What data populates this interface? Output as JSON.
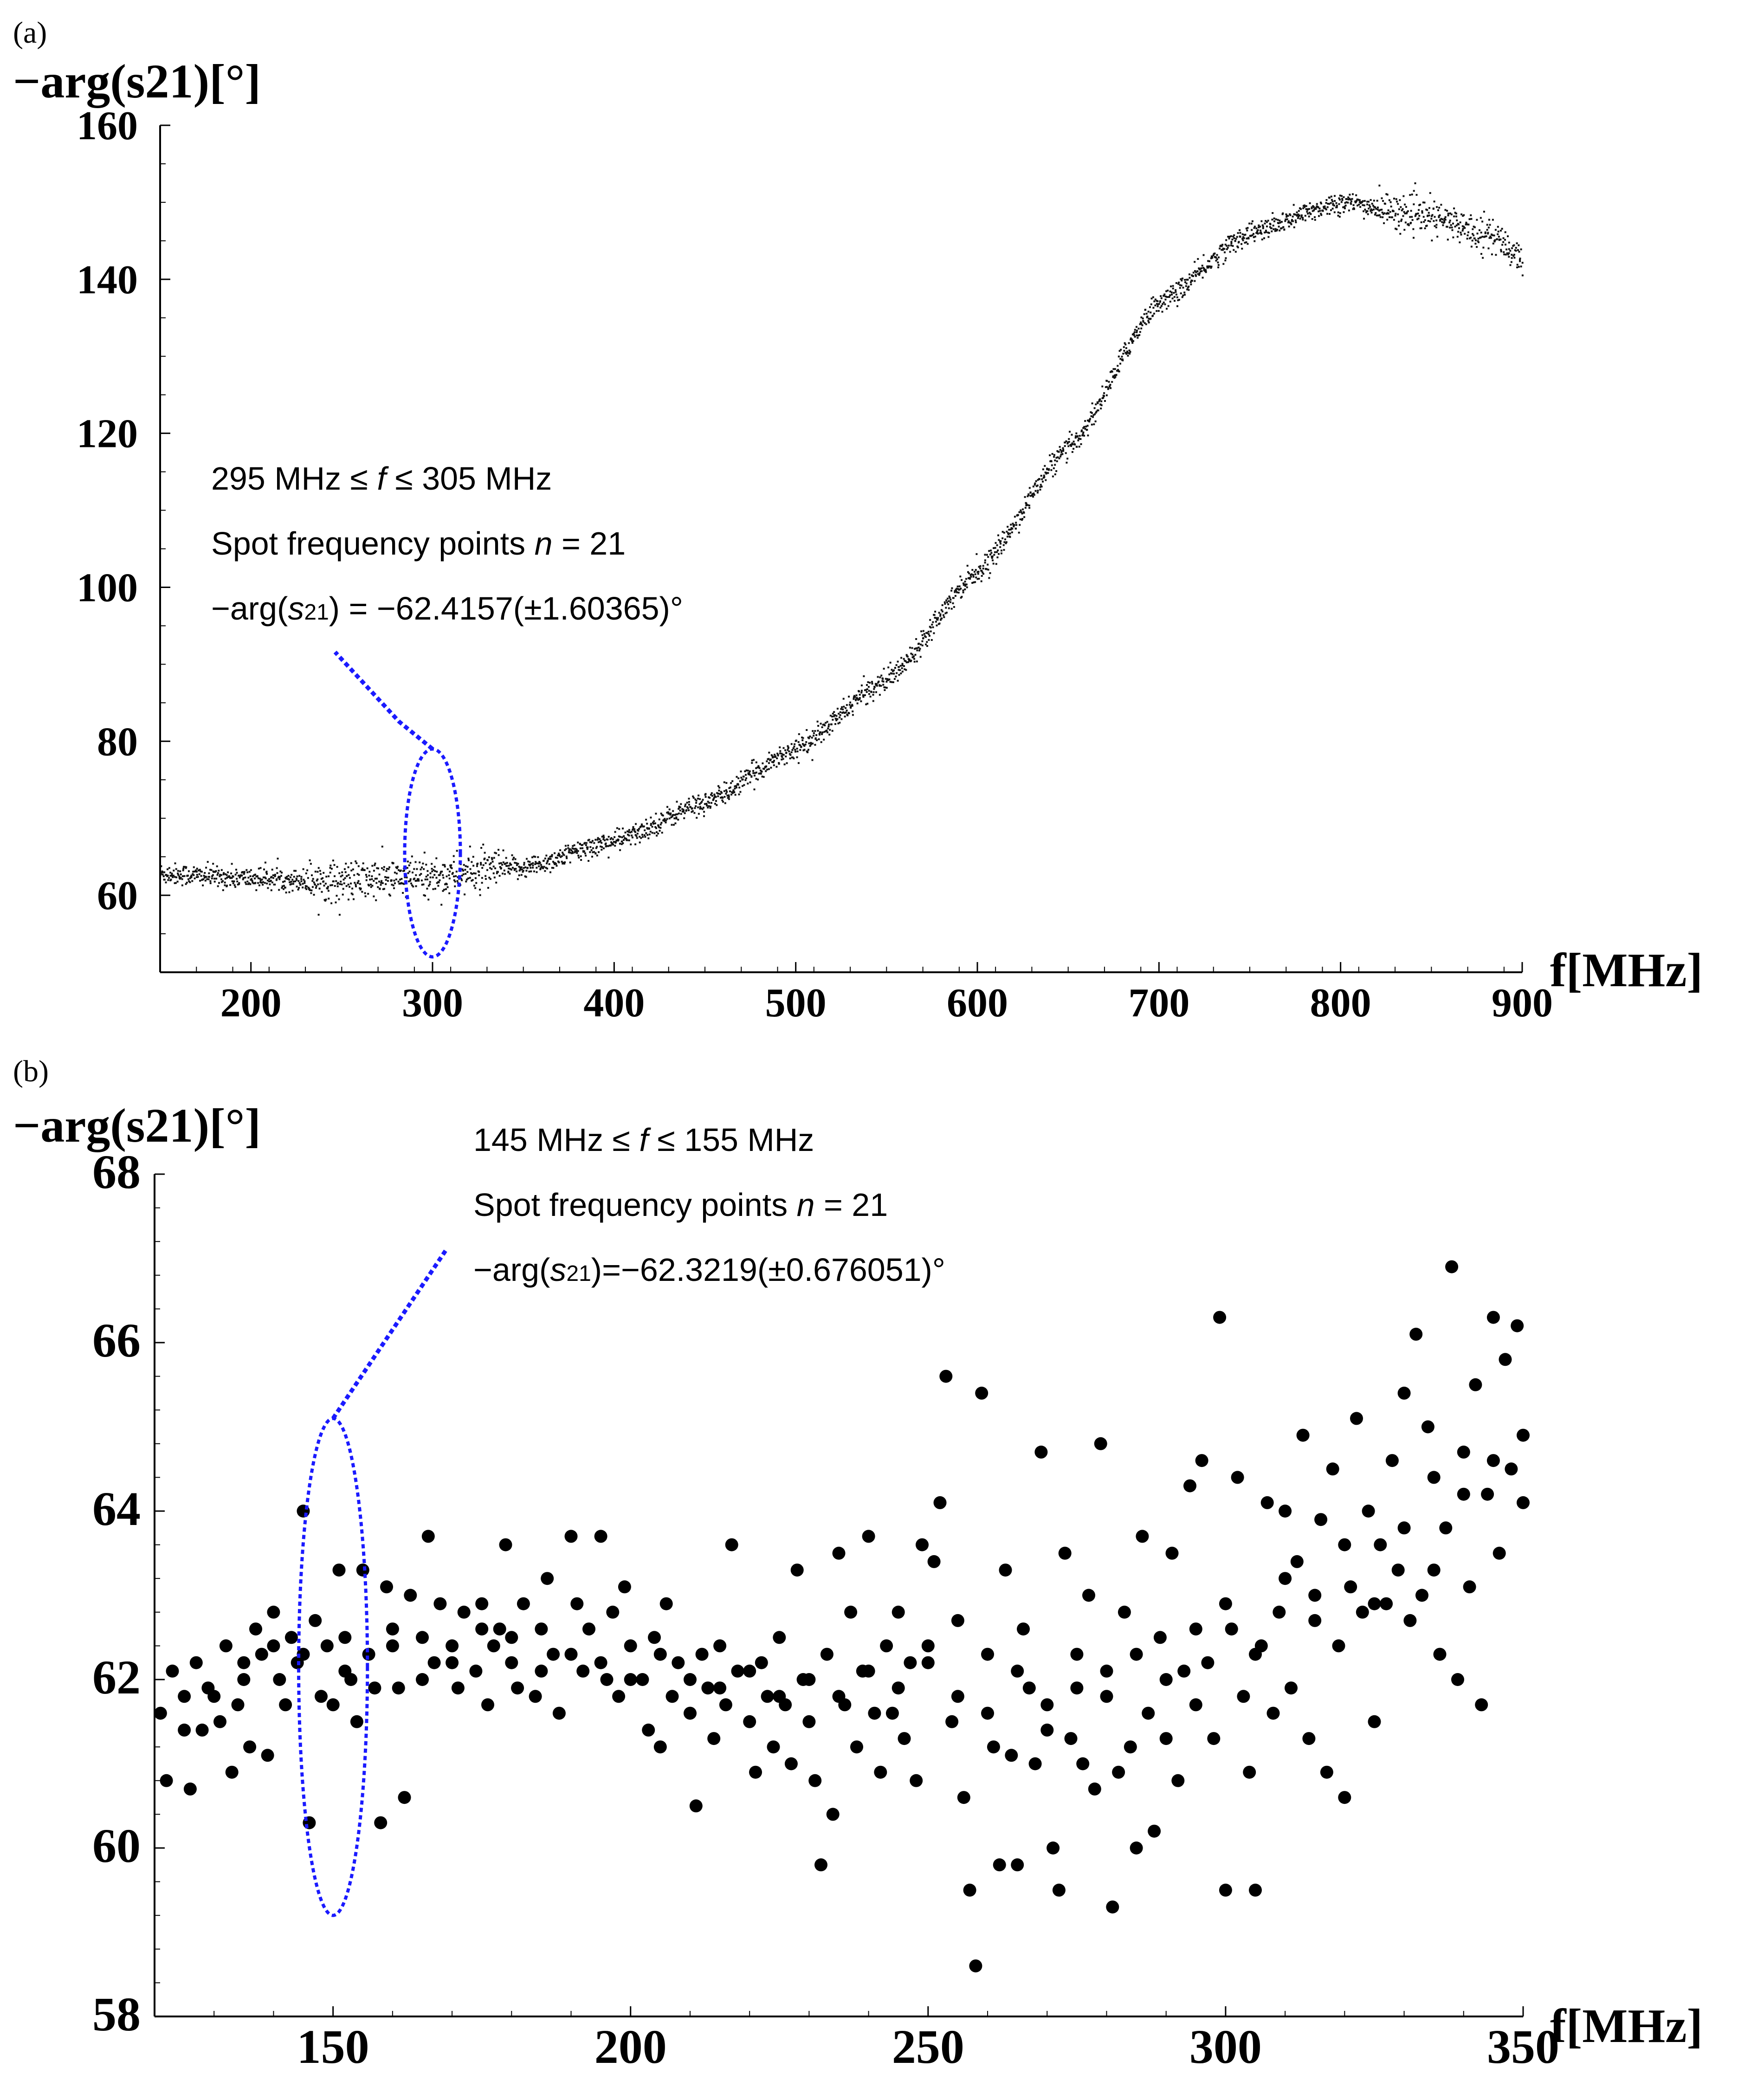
{
  "chart_data": [
    {
      "panel": "(a)",
      "type": "scatter",
      "ylabel": "−arg(s21)[°]",
      "xlabel": "f[MHz]",
      "xlim": [
        150,
        900
      ],
      "ylim": [
        50,
        160
      ],
      "xticks": [
        200,
        300,
        400,
        500,
        600,
        700,
        800,
        900
      ],
      "yticks": [
        60,
        80,
        100,
        120,
        140,
        160
      ],
      "curve_points": [
        [
          150,
          62.8
        ],
        [
          200,
          62.2
        ],
        [
          250,
          61.8
        ],
        [
          300,
          62.4
        ],
        [
          350,
          63.6
        ],
        [
          400,
          67
        ],
        [
          450,
          72
        ],
        [
          500,
          79
        ],
        [
          550,
          88
        ],
        [
          600,
          102
        ],
        [
          650,
          118
        ],
        [
          700,
          137
        ],
        [
          750,
          146
        ],
        [
          800,
          150
        ],
        [
          850,
          148
        ],
        [
          880,
          146
        ],
        [
          900,
          143
        ]
      ],
      "highlight": {
        "f_min": 295,
        "f_max": 305,
        "y_min": 52,
        "y_max": 79
      },
      "annotation": {
        "range": [
          "295 MHz ≤ ",
          "f",
          " ≤ 305 MHz"
        ],
        "count": [
          "Spot frequency points ",
          "n",
          " = 21"
        ],
        "result": [
          "−arg(",
          "s",
          "21",
          ") = −62.4157(±1.60365)°"
        ]
      },
      "tick_labels": [
        "200",
        "300",
        "400",
        "500",
        "600",
        "700",
        "800",
        "900",
        "60",
        "80",
        "100",
        "120",
        "140",
        "160"
      ]
    },
    {
      "panel": "(b)",
      "type": "scatter",
      "ylabel": "−arg(s21)[°]",
      "xlabel": "f[MHz]",
      "xlim": [
        120,
        350
      ],
      "ylim": [
        58,
        68
      ],
      "xticks": [
        150,
        200,
        250,
        300,
        350
      ],
      "yticks": [
        58,
        60,
        62,
        64,
        66,
        68
      ],
      "points": [
        [
          121,
          61.6
        ],
        [
          122,
          60.8
        ],
        [
          123,
          62.1
        ],
        [
          125,
          61.8
        ],
        [
          126,
          60.7
        ],
        [
          127,
          62.2
        ],
        [
          128,
          61.4
        ],
        [
          129,
          61.9
        ],
        [
          131,
          61.5
        ],
        [
          132,
          62.4
        ],
        [
          133,
          60.9
        ],
        [
          134,
          61.7
        ],
        [
          135,
          62.0
        ],
        [
          136,
          61.2
        ],
        [
          137,
          62.6
        ],
        [
          138,
          62.3
        ],
        [
          139,
          61.1
        ],
        [
          140,
          62.8
        ],
        [
          141,
          62.0
        ],
        [
          142,
          61.7
        ],
        [
          143,
          62.5
        ],
        [
          144,
          62.2
        ],
        [
          145,
          64.0
        ],
        [
          146,
          60.3
        ],
        [
          147,
          62.7
        ],
        [
          148,
          61.8
        ],
        [
          149,
          62.4
        ],
        [
          150,
          61.7
        ],
        [
          151,
          63.3
        ],
        [
          152,
          62.5
        ],
        [
          153,
          62.0
        ],
        [
          154,
          61.5
        ],
        [
          155,
          63.3
        ],
        [
          156,
          62.3
        ],
        [
          157,
          61.9
        ],
        [
          158,
          60.3
        ],
        [
          159,
          63.1
        ],
        [
          160,
          62.6
        ],
        [
          161,
          61.9
        ],
        [
          162,
          60.6
        ],
        [
          163,
          63.0
        ],
        [
          165,
          62.5
        ],
        [
          166,
          63.7
        ],
        [
          167,
          62.2
        ],
        [
          168,
          62.9
        ],
        [
          170,
          62.4
        ],
        [
          171,
          61.9
        ],
        [
          172,
          62.8
        ],
        [
          174,
          62.1
        ],
        [
          175,
          62.9
        ],
        [
          176,
          61.7
        ],
        [
          177,
          62.4
        ],
        [
          178,
          62.6
        ],
        [
          179,
          63.6
        ],
        [
          180,
          62.2
        ],
        [
          181,
          61.9
        ],
        [
          182,
          62.9
        ],
        [
          184,
          61.8
        ],
        [
          185,
          62.6
        ],
        [
          186,
          63.2
        ],
        [
          187,
          62.3
        ],
        [
          188,
          61.6
        ],
        [
          190,
          63.7
        ],
        [
          191,
          62.9
        ],
        [
          192,
          62.1
        ],
        [
          193,
          62.6
        ],
        [
          195,
          63.7
        ],
        [
          196,
          62.0
        ],
        [
          197,
          62.8
        ],
        [
          198,
          61.8
        ],
        [
          199,
          63.1
        ],
        [
          200,
          62.4
        ],
        [
          202,
          62.0
        ],
        [
          203,
          61.4
        ],
        [
          204,
          62.5
        ],
        [
          205,
          61.2
        ],
        [
          206,
          62.9
        ],
        [
          207,
          61.8
        ],
        [
          208,
          62.2
        ],
        [
          210,
          61.6
        ],
        [
          211,
          60.5
        ],
        [
          212,
          62.3
        ],
        [
          213,
          61.9
        ],
        [
          214,
          61.3
        ],
        [
          215,
          62.4
        ],
        [
          216,
          61.7
        ],
        [
          217,
          63.6
        ],
        [
          218,
          62.1
        ],
        [
          220,
          61.5
        ],
        [
          221,
          60.9
        ],
        [
          222,
          62.2
        ],
        [
          223,
          61.8
        ],
        [
          224,
          61.2
        ],
        [
          225,
          62.5
        ],
        [
          226,
          61.7
        ],
        [
          227,
          61.0
        ],
        [
          228,
          63.3
        ],
        [
          229,
          62.0
        ],
        [
          230,
          61.5
        ],
        [
          231,
          60.8
        ],
        [
          232,
          59.8
        ],
        [
          233,
          62.3
        ],
        [
          234,
          60.4
        ],
        [
          235,
          63.5
        ],
        [
          236,
          61.7
        ],
        [
          237,
          62.8
        ],
        [
          238,
          61.2
        ],
        [
          239,
          62.1
        ],
        [
          240,
          63.7
        ],
        [
          241,
          61.6
        ],
        [
          242,
          60.9
        ],
        [
          243,
          62.4
        ],
        [
          244,
          61.6
        ],
        [
          245,
          62.8
        ],
        [
          246,
          61.3
        ],
        [
          247,
          62.2
        ],
        [
          248,
          60.8
        ],
        [
          249,
          63.6
        ],
        [
          250,
          62.4
        ],
        [
          251,
          63.4
        ],
        [
          252,
          64.1
        ],
        [
          253,
          65.6
        ],
        [
          254,
          61.5
        ],
        [
          255,
          62.7
        ],
        [
          256,
          60.6
        ],
        [
          257,
          59.5
        ],
        [
          258,
          58.6
        ],
        [
          259,
          65.4
        ],
        [
          260,
          62.3
        ],
        [
          261,
          61.2
        ],
        [
          262,
          59.8
        ],
        [
          263,
          63.3
        ],
        [
          264,
          61.1
        ],
        [
          265,
          59.8
        ],
        [
          266,
          62.6
        ],
        [
          267,
          61.9
        ],
        [
          268,
          61.0
        ],
        [
          269,
          64.7
        ],
        [
          270,
          61.4
        ],
        [
          271,
          60.0
        ],
        [
          272,
          59.5
        ],
        [
          273,
          63.5
        ],
        [
          274,
          61.3
        ],
        [
          275,
          62.3
        ],
        [
          276,
          61.0
        ],
        [
          277,
          63.0
        ],
        [
          278,
          60.7
        ],
        [
          279,
          64.8
        ],
        [
          280,
          62.1
        ],
        [
          281,
          59.3
        ],
        [
          282,
          60.9
        ],
        [
          283,
          62.8
        ],
        [
          284,
          61.2
        ],
        [
          285,
          60.0
        ],
        [
          286,
          63.7
        ],
        [
          287,
          61.6
        ],
        [
          288,
          60.2
        ],
        [
          289,
          62.5
        ],
        [
          290,
          61.3
        ],
        [
          291,
          63.5
        ],
        [
          292,
          60.8
        ],
        [
          293,
          62.1
        ],
        [
          294,
          64.3
        ],
        [
          295,
          61.7
        ],
        [
          296,
          64.6
        ],
        [
          297,
          62.2
        ],
        [
          298,
          61.3
        ],
        [
          299,
          66.3
        ],
        [
          300,
          59.5
        ],
        [
          301,
          62.6
        ],
        [
          302,
          64.4
        ],
        [
          303,
          61.8
        ],
        [
          304,
          60.9
        ],
        [
          305,
          59.5
        ],
        [
          306,
          62.4
        ],
        [
          307,
          64.1
        ],
        [
          308,
          61.6
        ],
        [
          309,
          62.8
        ],
        [
          310,
          64.0
        ],
        [
          311,
          61.9
        ],
        [
          312,
          63.4
        ],
        [
          313,
          64.9
        ],
        [
          314,
          61.3
        ],
        [
          315,
          62.7
        ],
        [
          316,
          63.9
        ],
        [
          317,
          60.9
        ],
        [
          318,
          64.5
        ],
        [
          319,
          62.4
        ],
        [
          320,
          60.6
        ],
        [
          321,
          63.1
        ],
        [
          322,
          65.1
        ],
        [
          323,
          62.8
        ],
        [
          324,
          64.0
        ],
        [
          325,
          61.5
        ],
        [
          326,
          63.6
        ],
        [
          327,
          62.9
        ],
        [
          328,
          64.6
        ],
        [
          329,
          63.3
        ],
        [
          330,
          65.4
        ],
        [
          331,
          62.7
        ],
        [
          332,
          66.1
        ],
        [
          333,
          63.0
        ],
        [
          334,
          65.0
        ],
        [
          335,
          64.4
        ],
        [
          336,
          62.3
        ],
        [
          337,
          63.8
        ],
        [
          338,
          66.9
        ],
        [
          339,
          62.0
        ],
        [
          340,
          64.7
        ],
        [
          341,
          63.1
        ],
        [
          342,
          65.5
        ],
        [
          343,
          61.7
        ],
        [
          344,
          64.2
        ],
        [
          345,
          66.3
        ],
        [
          346,
          63.5
        ],
        [
          347,
          65.8
        ],
        [
          348,
          64.5
        ],
        [
          349,
          66.2
        ],
        [
          350,
          64.9
        ],
        [
          125,
          61.4
        ],
        [
          130,
          61.8
        ],
        [
          135,
          62.2
        ],
        [
          140,
          62.4
        ],
        [
          145,
          62.3
        ],
        [
          152,
          62.1
        ],
        [
          160,
          62.4
        ],
        [
          165,
          62.0
        ],
        [
          170,
          62.2
        ],
        [
          175,
          62.6
        ],
        [
          180,
          62.5
        ],
        [
          185,
          62.1
        ],
        [
          190,
          62.3
        ],
        [
          195,
          62.2
        ],
        [
          200,
          62.0
        ],
        [
          205,
          62.3
        ],
        [
          210,
          62.0
        ],
        [
          215,
          61.9
        ],
        [
          220,
          62.1
        ],
        [
          225,
          61.8
        ],
        [
          230,
          62.0
        ],
        [
          235,
          61.8
        ],
        [
          240,
          62.1
        ],
        [
          245,
          61.9
        ],
        [
          250,
          62.2
        ],
        [
          255,
          61.8
        ],
        [
          260,
          61.6
        ],
        [
          265,
          62.1
        ],
        [
          270,
          61.7
        ],
        [
          275,
          61.9
        ],
        [
          280,
          61.8
        ],
        [
          285,
          62.3
        ],
        [
          290,
          62.0
        ],
        [
          295,
          62.6
        ],
        [
          300,
          62.9
        ],
        [
          305,
          62.3
        ],
        [
          310,
          63.2
        ],
        [
          315,
          63.0
        ],
        [
          320,
          63.6
        ],
        [
          325,
          62.9
        ],
        [
          330,
          63.8
        ],
        [
          335,
          63.3
        ],
        [
          340,
          64.2
        ],
        [
          345,
          64.6
        ],
        [
          350,
          64.1
        ]
      ],
      "highlight": {
        "f_min": 145,
        "f_max": 155,
        "y_min": 59.2,
        "y_max": 65.1
      },
      "annotation": {
        "range": [
          "145 MHz ≤ ",
          "f",
          " ≤ 155 MHz"
        ],
        "count": [
          "Spot frequency points ",
          "n",
          " = 21"
        ],
        "result": [
          "−arg(",
          "s",
          "21",
          ")=−62.3219(±0.676051)°"
        ]
      },
      "tick_labels": [
        "150",
        "200",
        "250",
        "300",
        "350",
        "58",
        "60",
        "62",
        "64",
        "66",
        "68"
      ]
    }
  ]
}
